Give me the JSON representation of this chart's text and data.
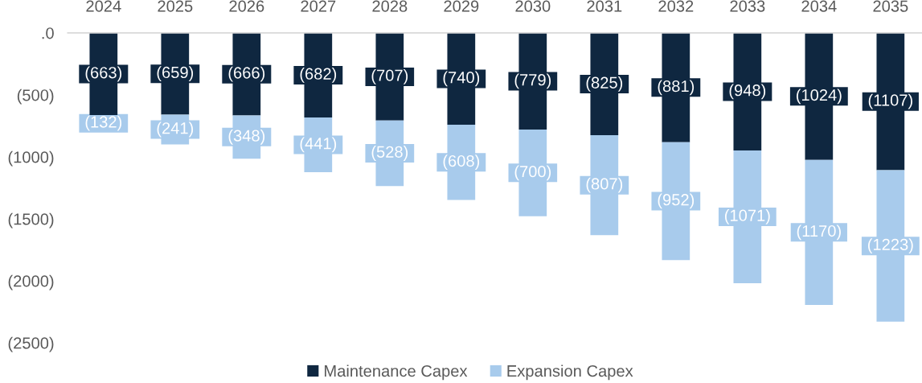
{
  "chart_data": {
    "type": "bar",
    "stacked": true,
    "categories": [
      "2024",
      "2025",
      "2026",
      "2027",
      "2028",
      "2029",
      "2030",
      "2031",
      "2032",
      "2033",
      "2034",
      "2035"
    ],
    "series": [
      {
        "name": "Maintenance Capex",
        "color": "#0f2740",
        "values": [
          -663,
          -659,
          -666,
          -682,
          -707,
          -740,
          -779,
          -825,
          -881,
          -948,
          -1024,
          -1107
        ],
        "value_labels": [
          "(663)",
          "(659)",
          "(666)",
          "(682)",
          "(707)",
          "(740)",
          "(779)",
          "(825)",
          "(881)",
          "(948)",
          "(1024)",
          "(1107)"
        ]
      },
      {
        "name": "Expansion Capex",
        "color": "#a8cbec",
        "values": [
          -132,
          -241,
          -348,
          -441,
          -528,
          -608,
          -700,
          -807,
          -952,
          -1071,
          -1170,
          -1223
        ],
        "value_labels": [
          "(132)",
          "(241)",
          "(348)",
          "(441)",
          "(528)",
          "(608)",
          "(700)",
          "(807)",
          "(952)",
          "(1071)",
          "(1170)",
          "(1223)"
        ]
      }
    ],
    "ylim": [
      -2500,
      0
    ],
    "yticks": [
      {
        "value": 0,
        "label": ".0"
      },
      {
        "value": -500,
        "label": "(500)"
      },
      {
        "value": -1000,
        "label": "(1000)"
      },
      {
        "value": -1500,
        "label": "(1500)"
      },
      {
        "value": -2000,
        "label": "(2000)"
      },
      {
        "value": -2500,
        "label": "(2500)"
      }
    ],
    "legend": "bottom",
    "grid": false
  }
}
